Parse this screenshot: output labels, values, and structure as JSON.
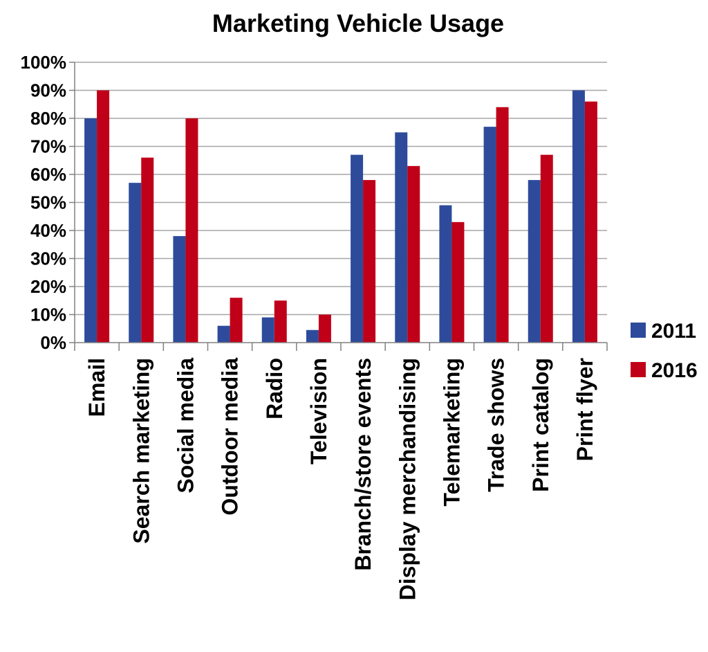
{
  "chart_data": {
    "type": "bar",
    "title": "Marketing Vehicle Usage",
    "xlabel": "",
    "ylabel": "",
    "ylim": [
      0,
      100
    ],
    "yticks": [
      "0%",
      "10%",
      "20%",
      "30%",
      "40%",
      "50%",
      "60%",
      "70%",
      "80%",
      "90%",
      "100%"
    ],
    "grid": true,
    "legend_position": "right",
    "categories": [
      "Email",
      "Search marketing",
      "Social media",
      "Outdoor media",
      "Radio",
      "Television",
      "Branch/store events",
      "Display merchandising",
      "Telemarketing",
      "Trade shows",
      "Print catalog",
      "Print flyer"
    ],
    "series": [
      {
        "name": "2011",
        "color": "#2e4b9b",
        "values": [
          80,
          57,
          38,
          6,
          9,
          4.5,
          67,
          75,
          49,
          77,
          58,
          90
        ]
      },
      {
        "name": "2016",
        "color": "#c00018",
        "values": [
          90,
          66,
          80,
          16,
          15,
          10,
          58,
          63,
          43,
          84,
          67,
          86
        ]
      }
    ]
  }
}
